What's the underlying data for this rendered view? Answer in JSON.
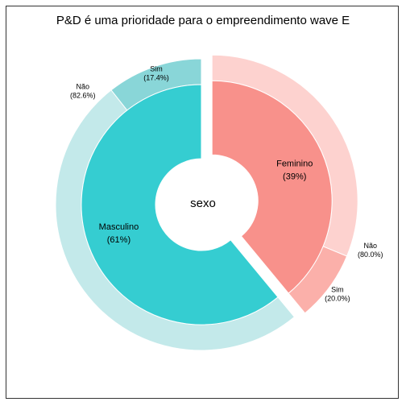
{
  "chart_data": {
    "type": "pie",
    "title": "P&D é uma prioridade para o empreendimento wave E",
    "center_label": "sexo",
    "inner_ring": [
      {
        "name": "Feminino",
        "percent_label": "(39%)",
        "value": 39,
        "color": "#F8918B"
      },
      {
        "name": "Masculino",
        "percent_label": "(61%)",
        "value": 61,
        "color": "#35CDD1"
      }
    ],
    "outer_ring": [
      {
        "group": "Feminino",
        "name": "Não",
        "percent_label": "(80.0%)",
        "value": 80.0,
        "color": "#FDD2CF"
      },
      {
        "group": "Feminino",
        "name": "Sim",
        "percent_label": "(20.0%)",
        "value": 20.0,
        "color": "#FBB0AA"
      },
      {
        "group": "Masculino",
        "name": "Não",
        "percent_label": "(82.6%)",
        "value": 82.6,
        "color": "#C3E9EA"
      },
      {
        "group": "Masculino",
        "name": "Sim",
        "percent_label": "(17.4%)",
        "value": 17.4,
        "color": "#89D6D8"
      }
    ],
    "legend": "none",
    "grid": false
  }
}
